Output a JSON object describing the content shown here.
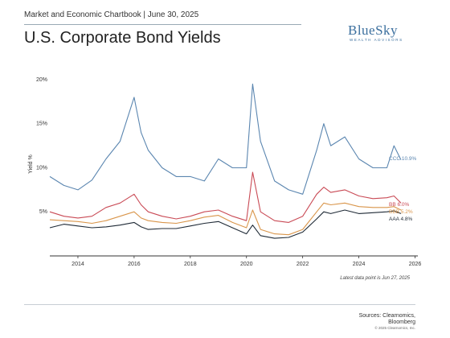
{
  "header": {
    "subtitle": "Market and Economic Chartbook | June 30, 2025",
    "title": "U.S. Corporate Bond Yields"
  },
  "logo": {
    "name": "BlueSky",
    "tagline": "WEALTH ADVISORS"
  },
  "colors": {
    "CCC": "#5b86b0",
    "BB": "#c94a55",
    "BBB": "#d9954a",
    "AAA": "#1f2a36",
    "axis": "#333333"
  },
  "chart_data": {
    "type": "line",
    "title": "U.S. Corporate Bond Yields",
    "xlabel": "",
    "ylabel": "Yield %",
    "xlim": [
      2013.0,
      2026.1
    ],
    "ylim": [
      0,
      21
    ],
    "x_ticks": [
      "2014",
      "2016",
      "2018",
      "2020",
      "2022",
      "2024",
      "2026"
    ],
    "y_ticks": [
      "5%",
      "10%",
      "15%",
      "20%"
    ],
    "grid": false,
    "x": [
      2013.0,
      2013.5,
      2014.0,
      2014.5,
      2015.0,
      2015.5,
      2016.0,
      2016.25,
      2016.5,
      2017.0,
      2017.5,
      2018.0,
      2018.5,
      2019.0,
      2019.5,
      2020.0,
      2020.22,
      2020.5,
      2021.0,
      2021.5,
      2022.0,
      2022.5,
      2022.75,
      2023.0,
      2023.5,
      2024.0,
      2024.5,
      2025.0,
      2025.25,
      2025.5
    ],
    "series": [
      {
        "name": "CCC",
        "end_label": "CCC 10.9%",
        "values": [
          9.0,
          8.0,
          7.5,
          8.6,
          11.0,
          13.0,
          18.0,
          14.0,
          12.0,
          10.0,
          9.0,
          9.0,
          8.5,
          11.0,
          10.0,
          10.0,
          19.5,
          13.0,
          8.5,
          7.5,
          7.0,
          12.0,
          15.0,
          12.5,
          13.5,
          11.0,
          10.0,
          10.0,
          12.5,
          10.9
        ]
      },
      {
        "name": "BB",
        "end_label": "BB 6.0%",
        "values": [
          5.0,
          4.5,
          4.3,
          4.5,
          5.5,
          6.0,
          7.0,
          5.8,
          5.0,
          4.5,
          4.2,
          4.5,
          5.0,
          5.2,
          4.5,
          4.0,
          9.5,
          5.0,
          4.0,
          3.8,
          4.5,
          7.0,
          7.8,
          7.2,
          7.5,
          6.8,
          6.5,
          6.6,
          6.8,
          6.0
        ]
      },
      {
        "name": "BBB",
        "end_label": "BBB 5.2%",
        "values": [
          4.1,
          4.0,
          3.9,
          3.7,
          4.0,
          4.5,
          5.0,
          4.3,
          4.0,
          3.8,
          3.7,
          4.0,
          4.4,
          4.6,
          3.8,
          3.2,
          5.2,
          3.0,
          2.5,
          2.4,
          3.0,
          5.0,
          6.0,
          5.8,
          6.0,
          5.6,
          5.5,
          5.5,
          5.6,
          5.2
        ]
      },
      {
        "name": "AAA",
        "end_label": "AAA 4.8%",
        "values": [
          3.2,
          3.6,
          3.4,
          3.2,
          3.3,
          3.5,
          3.8,
          3.3,
          3.0,
          3.1,
          3.1,
          3.4,
          3.7,
          3.9,
          3.2,
          2.5,
          3.5,
          2.3,
          2.0,
          2.1,
          2.7,
          4.2,
          5.0,
          4.8,
          5.2,
          4.8,
          4.9,
          5.0,
          5.1,
          4.8
        ]
      }
    ]
  },
  "footnote": "Latest data point is Jun 27, 2025",
  "sources": {
    "line1": "Sources: Clearnomics,",
    "line2": "Bloomberg",
    "copyright": "© 2025 Clearnomics, Inc."
  }
}
